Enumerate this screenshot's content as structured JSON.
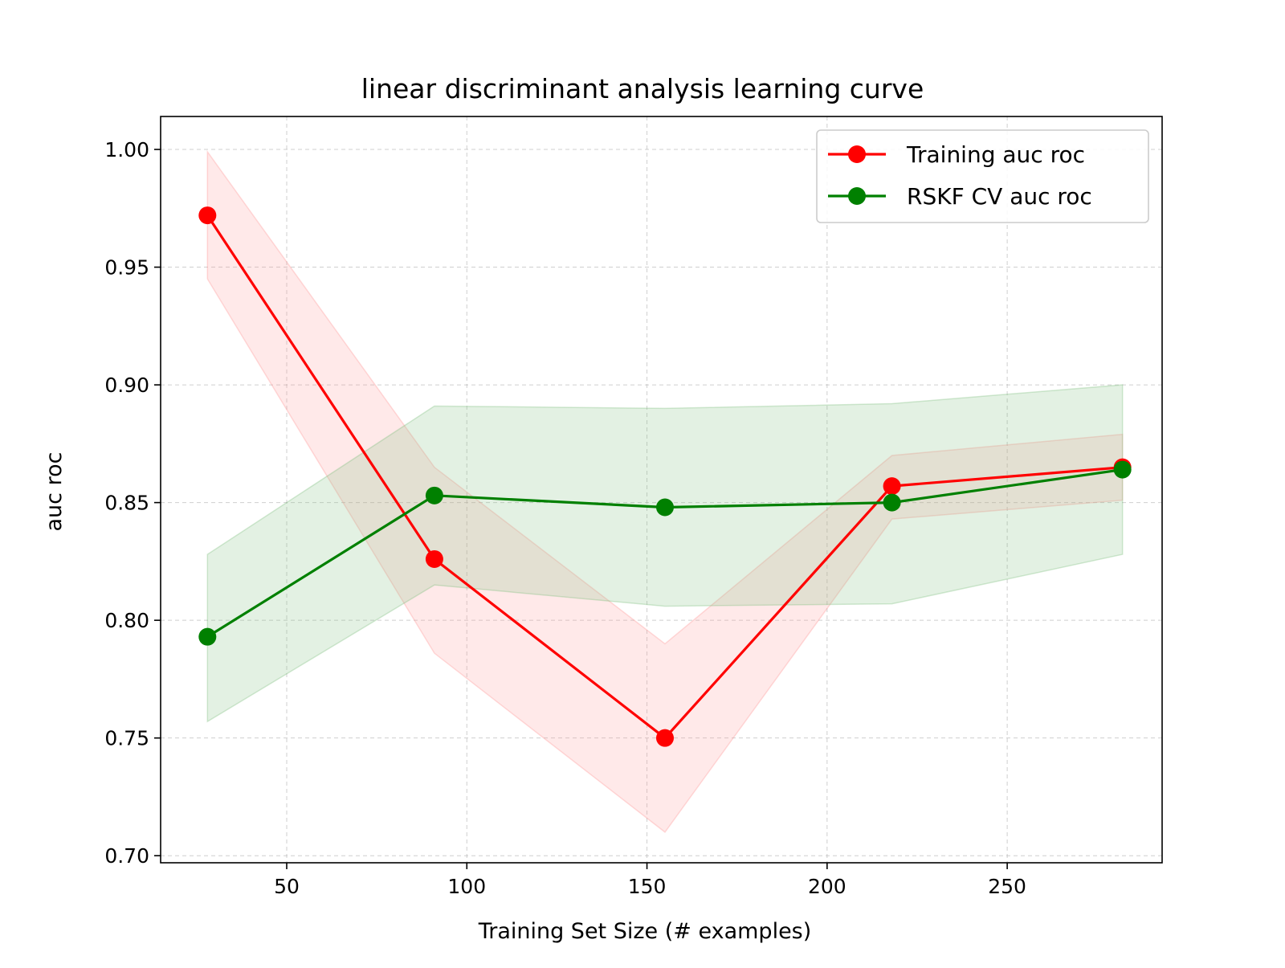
{
  "chart_data": {
    "type": "line",
    "title": "linear discriminant analysis learning curve",
    "xlabel": "Training Set Size (# examples)",
    "ylabel": "auc roc",
    "xlim": [
      15,
      293
    ],
    "ylim": [
      0.697,
      1.014
    ],
    "xticks": [
      50,
      100,
      150,
      200,
      250
    ],
    "xtick_labels": [
      "50",
      "100",
      "150",
      "200",
      "250"
    ],
    "yticks": [
      0.7,
      0.75,
      0.8,
      0.85,
      0.9,
      0.95,
      1.0
    ],
    "ytick_labels": [
      "0.70",
      "0.75",
      "0.80",
      "0.85",
      "0.90",
      "0.95",
      "1.00"
    ],
    "grid": true,
    "legend_position": "top-right",
    "x": [
      28,
      91,
      155,
      218,
      282
    ],
    "series": [
      {
        "name": "Training auc roc",
        "color": "#ff0000",
        "fill_color": "#ff9999",
        "values": [
          0.972,
          0.826,
          0.75,
          0.857,
          0.865
        ],
        "upper": [
          0.999,
          0.865,
          0.79,
          0.87,
          0.879
        ],
        "lower": [
          0.945,
          0.786,
          0.71,
          0.843,
          0.851
        ]
      },
      {
        "name": "RSKF CV auc roc",
        "color": "#008000",
        "fill_color": "#80c080",
        "values": [
          0.793,
          0.853,
          0.848,
          0.85,
          0.864
        ],
        "upper": [
          0.828,
          0.891,
          0.89,
          0.892,
          0.9
        ],
        "lower": [
          0.757,
          0.815,
          0.806,
          0.807,
          0.828
        ]
      }
    ]
  }
}
